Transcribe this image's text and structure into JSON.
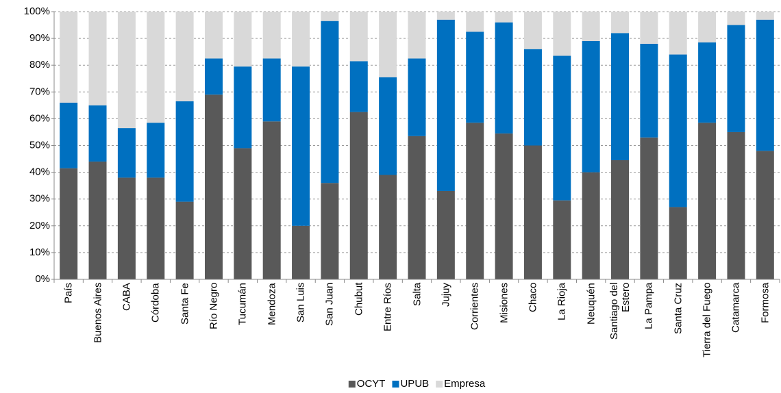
{
  "chart_data": {
    "type": "stacked-bar-100",
    "categories": [
      "País",
      "Buenos Aires",
      "CABA",
      "Córdoba",
      "Santa Fe",
      "Río Negro",
      "Tucumán",
      "Mendoza",
      "San Luis",
      "San Juan",
      "Chubut",
      "Entre Ríos",
      "Salta",
      "Jujuy",
      "Corrientes",
      "Misiones",
      "Chaco",
      "La Rioja",
      "Neuquén",
      "Santiago del Estero",
      "La Pampa",
      "Santa Cruz",
      "Tierra del Fuego",
      "Catamarca",
      "Formosa"
    ],
    "series": [
      {
        "name": "OCYT",
        "color": "#595959",
        "values": [
          41.5,
          44,
          38,
          38,
          29,
          69,
          49,
          59,
          20,
          36,
          62.5,
          39,
          53.5,
          33,
          58.5,
          54.5,
          50,
          29.5,
          40,
          44.5,
          53,
          27,
          58.5,
          55,
          48
        ]
      },
      {
        "name": "UPUB",
        "color": "#0070c0",
        "values": [
          24.5,
          21,
          18.5,
          20.5,
          37.5,
          13.5,
          30.5,
          23.5,
          59.5,
          60.5,
          19,
          36.5,
          29,
          64,
          34,
          41.5,
          36,
          54,
          49,
          47.5,
          35,
          57,
          30,
          40,
          49
        ]
      },
      {
        "name": "Empresa",
        "color": "#d9d9d9",
        "values": [
          34,
          35,
          43.5,
          41.5,
          33.5,
          17.5,
          20.5,
          17.5,
          20.5,
          3.5,
          18.5,
          24.5,
          17.5,
          3,
          7.5,
          4,
          14,
          16.5,
          11,
          8,
          12,
          16,
          11.5,
          5,
          3
        ]
      }
    ],
    "ylim": [
      0,
      100
    ],
    "yticks": [
      {
        "value": 0,
        "label": "0%"
      },
      {
        "value": 10,
        "label": "10%"
      },
      {
        "value": 20,
        "label": "20%"
      },
      {
        "value": 30,
        "label": "30%"
      },
      {
        "value": 40,
        "label": "40%"
      },
      {
        "value": 50,
        "label": "50%"
      },
      {
        "value": 60,
        "label": "60%"
      },
      {
        "value": 70,
        "label": "70%"
      },
      {
        "value": 80,
        "label": "80%"
      },
      {
        "value": 90,
        "label": "90%"
      },
      {
        "value": 100,
        "label": "100%"
      }
    ],
    "grid": true,
    "legend": "bottom"
  }
}
